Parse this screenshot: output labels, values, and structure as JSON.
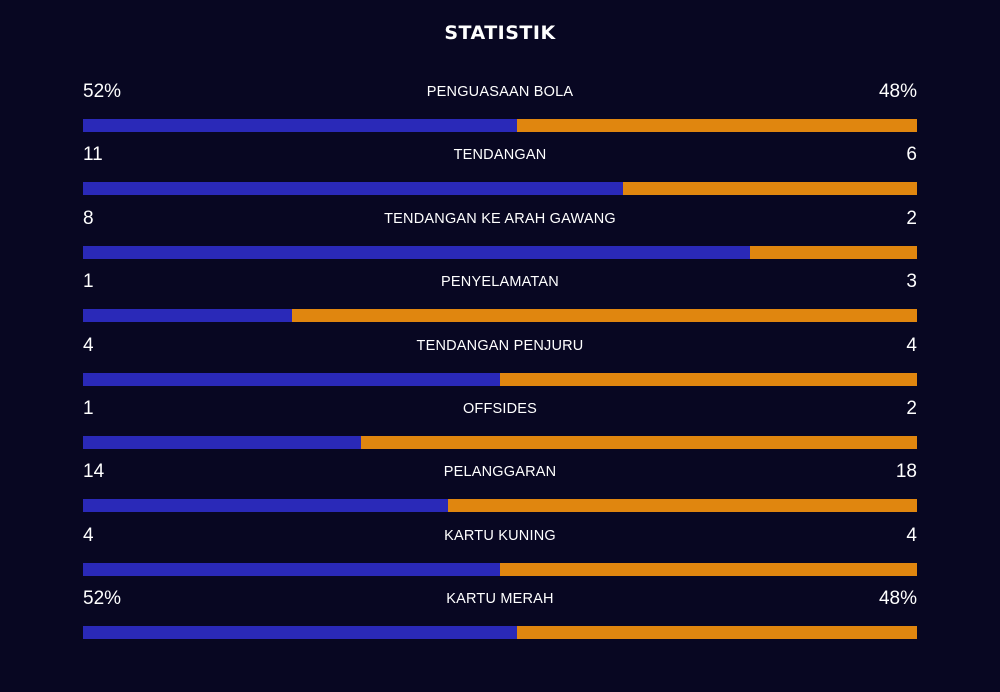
{
  "title": "STATISTIK",
  "colors": {
    "home": "#2a29b8",
    "away": "#e0860f",
    "background": "#080722"
  },
  "stats": [
    {
      "label": "PENGUASAAN BOLA",
      "home": "52%",
      "away": "48%",
      "home_share": 0.52
    },
    {
      "label": "TENDANGAN",
      "home": "11",
      "away": "6",
      "home_share": 0.647
    },
    {
      "label": "TENDANGAN KE ARAH GAWANG",
      "home": "8",
      "away": "2",
      "home_share": 0.8
    },
    {
      "label": "PENYELAMATAN",
      "home": "1",
      "away": "3",
      "home_share": 0.25
    },
    {
      "label": "TENDANGAN PENJURU",
      "home": "4",
      "away": "4",
      "home_share": 0.5
    },
    {
      "label": "OFFSIDES",
      "home": "1",
      "away": "2",
      "home_share": 0.333
    },
    {
      "label": "PELANGGARAN",
      "home": "14",
      "away": "18",
      "home_share": 0.4375
    },
    {
      "label": "KARTU KUNING",
      "home": "4",
      "away": "4",
      "home_share": 0.5
    },
    {
      "label": "KARTU MERAH",
      "home": "52%",
      "away": "48%",
      "home_share": 0.52
    }
  ]
}
